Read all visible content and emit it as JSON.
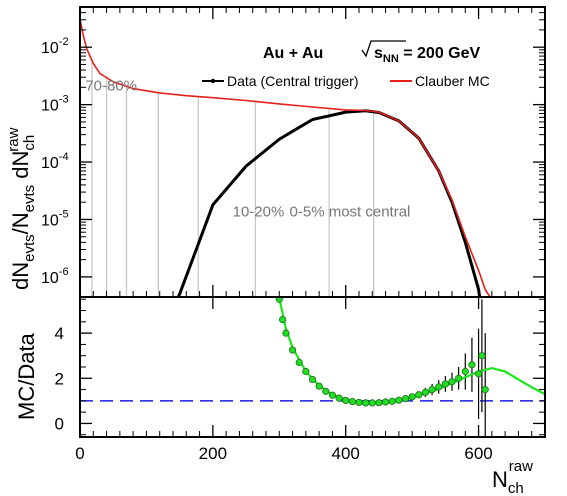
{
  "chart_data": [
    {
      "type": "line",
      "panel": "top",
      "system_label": "Au + Au",
      "energy_label_prefix": "s",
      "energy_label_sub": "NN",
      "energy_label_suffix": " = 200 GeV",
      "ylabel_parts": [
        "dN",
        "evts",
        "/N",
        "evts",
        " dN",
        "ch",
        "raw"
      ],
      "xlim": [
        0,
        700
      ],
      "ylim_log10": [
        -6.35,
        -1.3
      ],
      "y_scale": "log",
      "y_ticks": [
        {
          "exp": "-6",
          "value": 1e-06
        },
        {
          "exp": "-5",
          "value": 1e-05
        },
        {
          "exp": "-4",
          "value": 0.0001
        },
        {
          "exp": "-3",
          "value": 0.001
        },
        {
          "exp": "-2",
          "value": 0.01
        }
      ],
      "legend_position": "top-right",
      "series": [
        {
          "name": "Data (Central trigger)",
          "color": "#000000",
          "x": [
            120,
            150,
            200,
            250,
            300,
            350,
            400,
            430,
            450,
            480,
            510,
            540,
            560,
            580,
            600,
            610
          ],
          "y": [
            1e-07,
            5e-07,
            1.8e-05,
            8.5e-05,
            0.00025,
            0.00055,
            0.00074,
            0.00078,
            0.00073,
            0.00052,
            0.00026,
            7e-05,
            2e-05,
            4e-06,
            6e-07,
            1e-07
          ]
        },
        {
          "name": "Clauber MC",
          "color": "#e8201c",
          "x": [
            0,
            2,
            5,
            10,
            20,
            30,
            50,
            80,
            120,
            160,
            200,
            250,
            300,
            350,
            400,
            430,
            450,
            480,
            510,
            540,
            560,
            580,
            600,
            610,
            620
          ],
          "y": [
            0.0303,
            0.024,
            0.016,
            0.0095,
            0.0052,
            0.0035,
            0.0025,
            0.0019,
            0.0016,
            0.00143,
            0.00132,
            0.00118,
            0.00103,
            0.00091,
            0.00081,
            0.00079,
            0.00074,
            0.00052,
            0.00026,
            7e-05,
            2.2e-05,
            5e-06,
            1.3e-06,
            6e-07,
            4e-07
          ]
        }
      ],
      "centrality_lines_x": [
        18,
        40,
        70,
        118,
        178,
        264,
        375,
        442
      ],
      "centrality_labels": [
        {
          "text": "70-80%",
          "x": 8,
          "y_log10": -2.75
        },
        {
          "text": "10-20%",
          "x": 302,
          "y_log10": -4.95
        },
        {
          "text": "0-5% most central",
          "x": 478,
          "y_log10": -4.95
        }
      ]
    },
    {
      "type": "scatter",
      "panel": "bottom",
      "ylabel": "MC/Data",
      "xlabel_base": "N",
      "xlabel_sub": "ch",
      "xlabel_sup": "raw",
      "xlim": [
        0,
        700
      ],
      "ylim": [
        -0.6,
        5.6
      ],
      "x_ticks": [
        0,
        200,
        400,
        600
      ],
      "y_ticks": [
        0,
        2,
        4
      ],
      "reference_line": {
        "y": 1,
        "color": "#1a1ae6",
        "style": "dashed"
      },
      "series": [
        {
          "name": "ratio",
          "color": "#000000",
          "marker_color": "#22dd22",
          "x": [
            300,
            305,
            310,
            320,
            330,
            340,
            350,
            360,
            370,
            380,
            390,
            400,
            410,
            420,
            430,
            440,
            450,
            460,
            470,
            480,
            490,
            500,
            510,
            520,
            530,
            540,
            550,
            560,
            570,
            580,
            590,
            600,
            605,
            610
          ],
          "y": [
            5.5,
            4.6,
            4.0,
            3.25,
            2.7,
            2.3,
            1.95,
            1.65,
            1.42,
            1.25,
            1.12,
            1.02,
            0.97,
            0.93,
            0.91,
            0.91,
            0.92,
            0.95,
            0.98,
            1.03,
            1.1,
            1.18,
            1.27,
            1.38,
            1.5,
            1.62,
            1.75,
            1.85,
            2.0,
            2.3,
            2.6,
            2.2,
            3.0,
            1.5
          ],
          "err": [
            0.05,
            0.04,
            0.03,
            0.02,
            0.02,
            0.02,
            0.02,
            0.02,
            0.02,
            0.02,
            0.02,
            0.02,
            0.02,
            0.02,
            0.02,
            0.02,
            0.03,
            0.04,
            0.06,
            0.08,
            0.1,
            0.12,
            0.15,
            0.2,
            0.25,
            0.3,
            0.35,
            0.4,
            0.5,
            0.8,
            1.2,
            2.0,
            2.5,
            2.5
          ]
        },
        {
          "name": "fit",
          "color": "#19e619",
          "x": [
            300,
            310,
            320,
            340,
            360,
            380,
            400,
            420,
            440,
            460,
            480,
            500,
            520,
            540,
            560,
            580,
            600,
            620,
            640,
            660,
            680,
            700
          ],
          "y": [
            5.55,
            4.2,
            3.35,
            2.3,
            1.68,
            1.28,
            1.05,
            0.95,
            0.92,
            0.95,
            1.02,
            1.15,
            1.32,
            1.52,
            1.78,
            2.05,
            2.3,
            2.45,
            2.3,
            1.95,
            1.6,
            1.3
          ]
        }
      ]
    }
  ]
}
